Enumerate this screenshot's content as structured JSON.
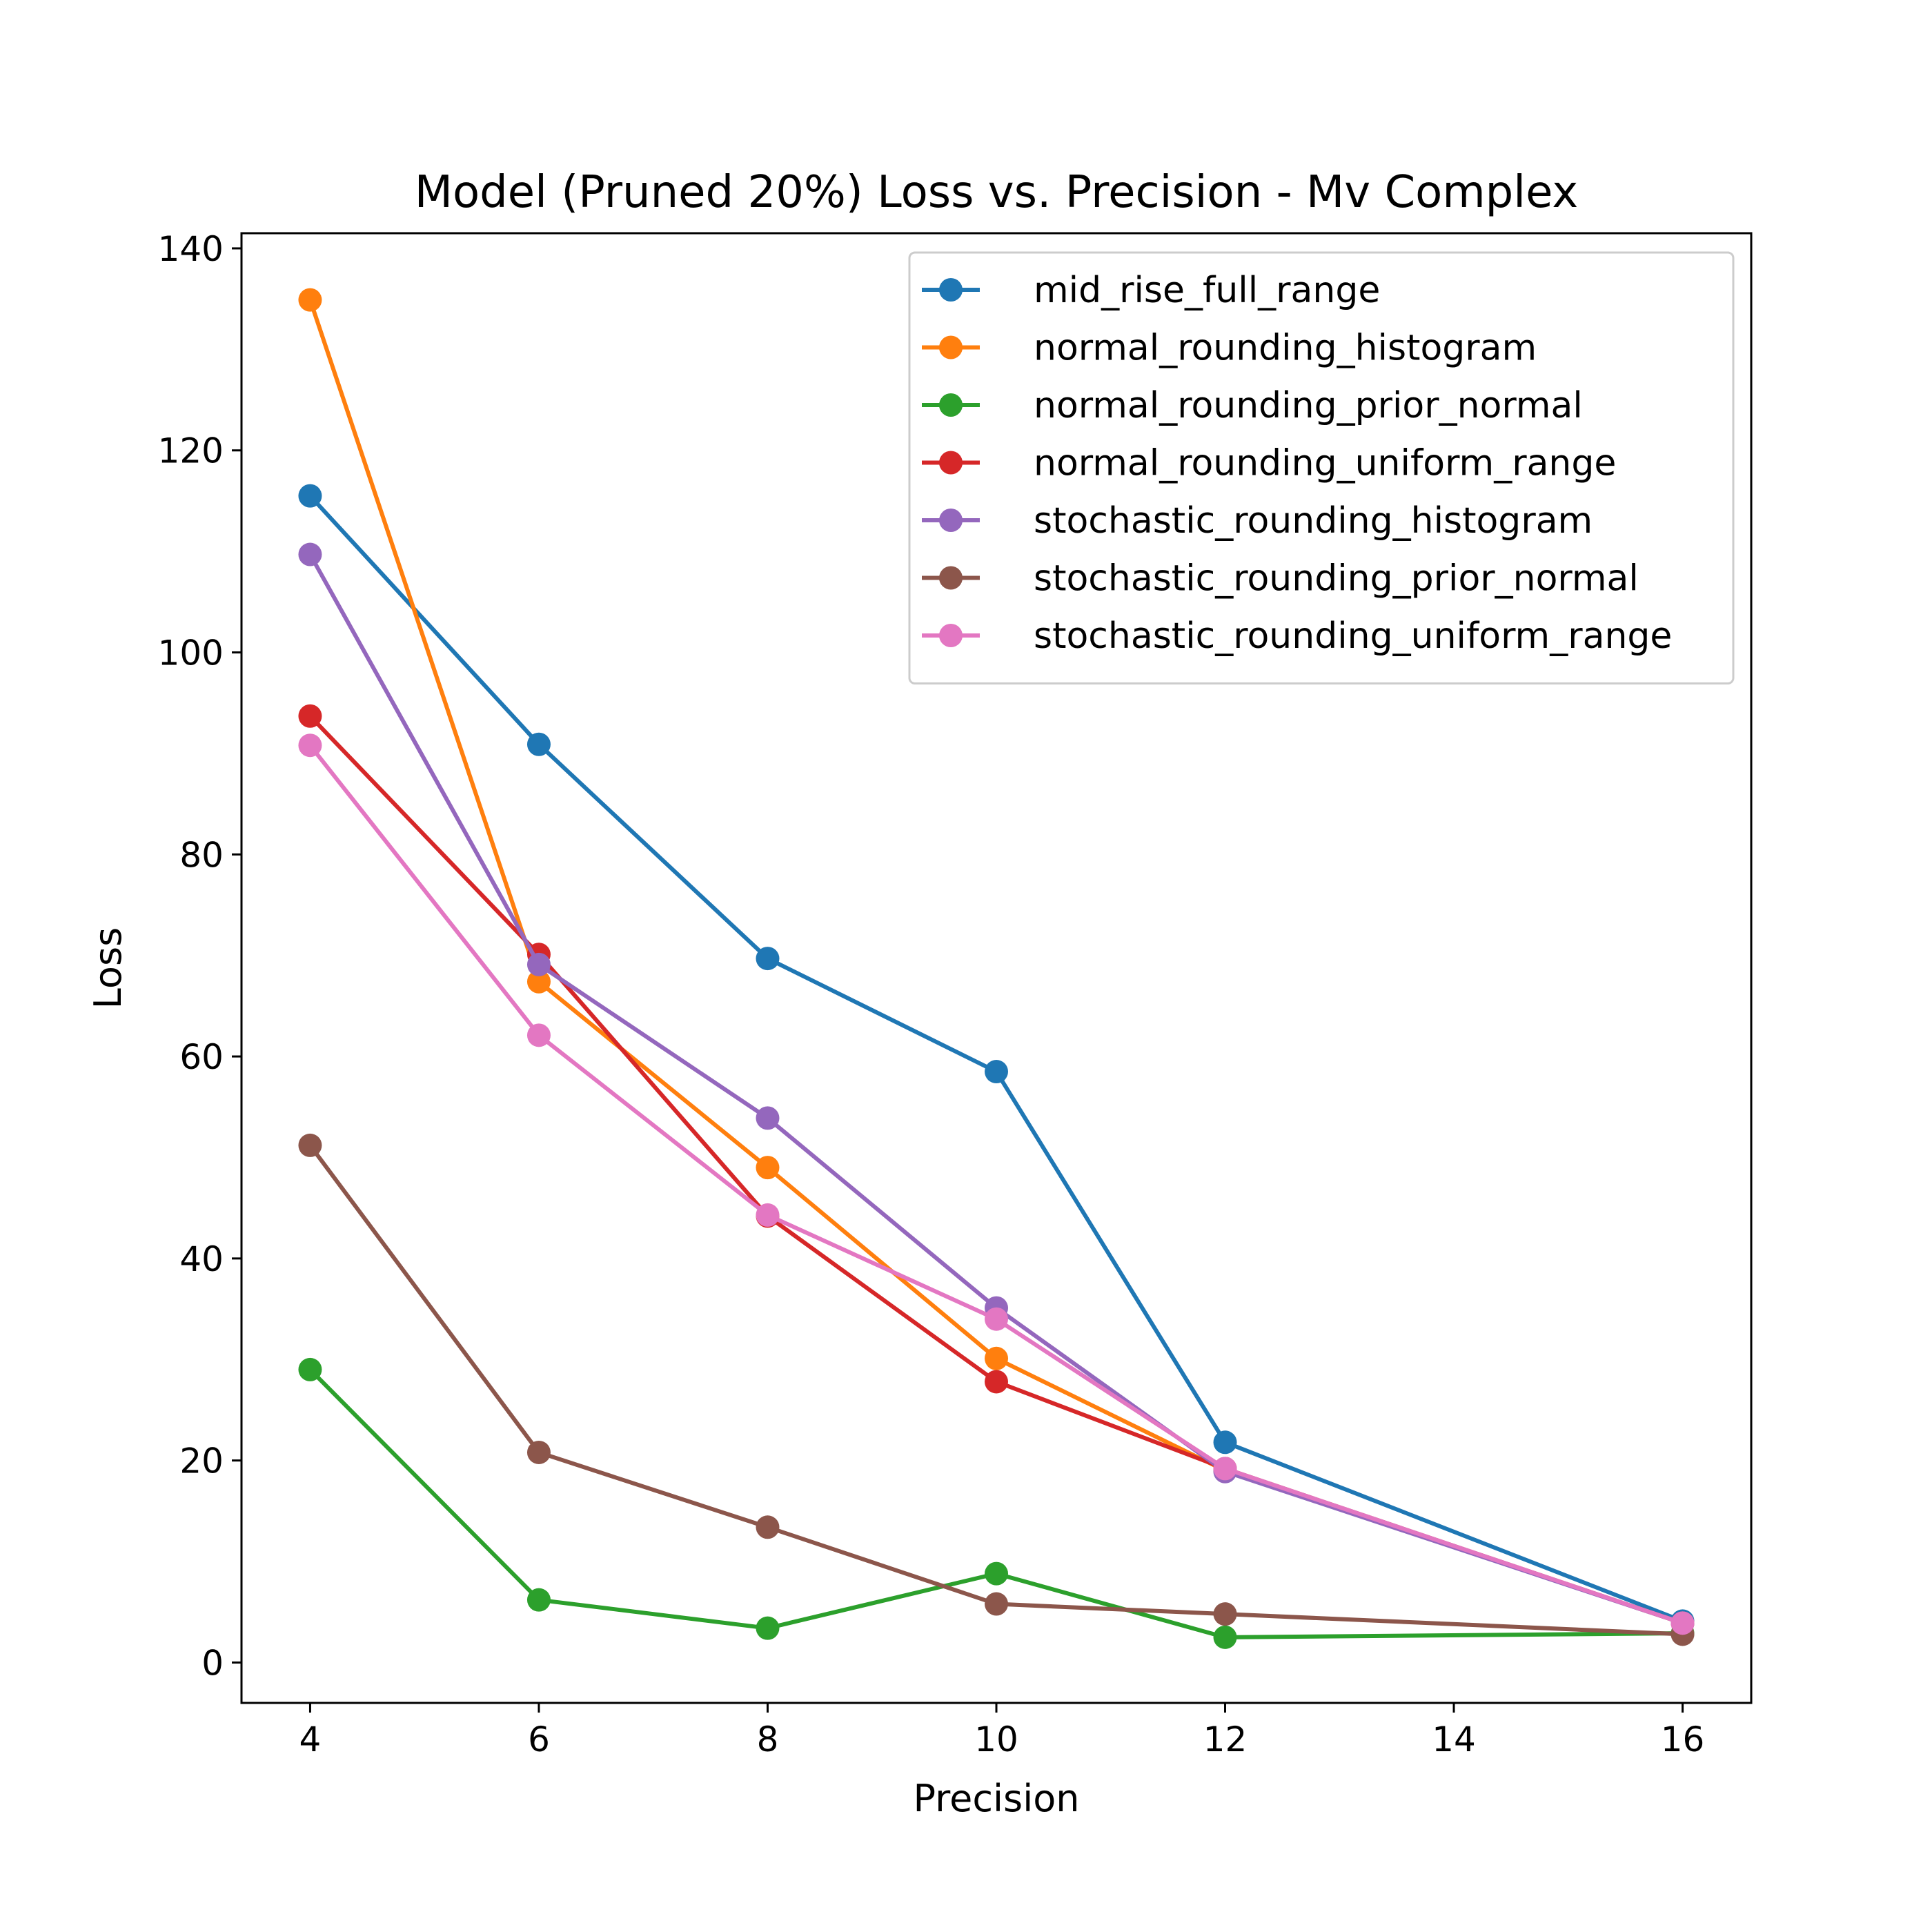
{
  "chart_data": {
    "type": "line",
    "title": "Model (Pruned 20%) Loss vs. Precision - Mv Complex",
    "xlabel": "Precision",
    "ylabel": "Loss",
    "x": [
      4,
      6,
      8,
      10,
      12,
      16
    ],
    "xlim": [
      3.4,
      16.6
    ],
    "ylim": [
      -4,
      141.5
    ],
    "xticks": [
      4,
      6,
      8,
      10,
      12,
      14,
      16
    ],
    "yticks": [
      0,
      20,
      40,
      60,
      80,
      100,
      120,
      140
    ],
    "grid": false,
    "legend_position": "top-right",
    "series": [
      {
        "name": "mid_rise_full_range",
        "color": "#1f77b4",
        "values": [
          115.5,
          90.9,
          69.7,
          58.5,
          21.8,
          4.1
        ]
      },
      {
        "name": "normal_rounding_histogram",
        "color": "#ff7f0e",
        "values": [
          134.9,
          67.4,
          49.0,
          30.1,
          19.0,
          3.9
        ]
      },
      {
        "name": "normal_rounding_prior_normal",
        "color": "#2ca02c",
        "values": [
          29.0,
          6.2,
          3.4,
          8.8,
          2.5,
          2.9
        ]
      },
      {
        "name": "normal_rounding_uniform_range",
        "color": "#d62728",
        "values": [
          93.7,
          70.1,
          44.2,
          27.8,
          19.2,
          3.9
        ]
      },
      {
        "name": "stochastic_rounding_histogram",
        "color": "#9467bd",
        "values": [
          109.7,
          69.1,
          53.9,
          35.1,
          18.9,
          3.9
        ]
      },
      {
        "name": "stochastic_rounding_prior_normal",
        "color": "#8c564b",
        "values": [
          51.2,
          20.8,
          13.4,
          5.8,
          4.8,
          2.8
        ]
      },
      {
        "name": "stochastic_rounding_uniform_range",
        "color": "#e377c2",
        "values": [
          90.8,
          62.1,
          44.3,
          34.0,
          19.2,
          3.9
        ]
      }
    ]
  }
}
